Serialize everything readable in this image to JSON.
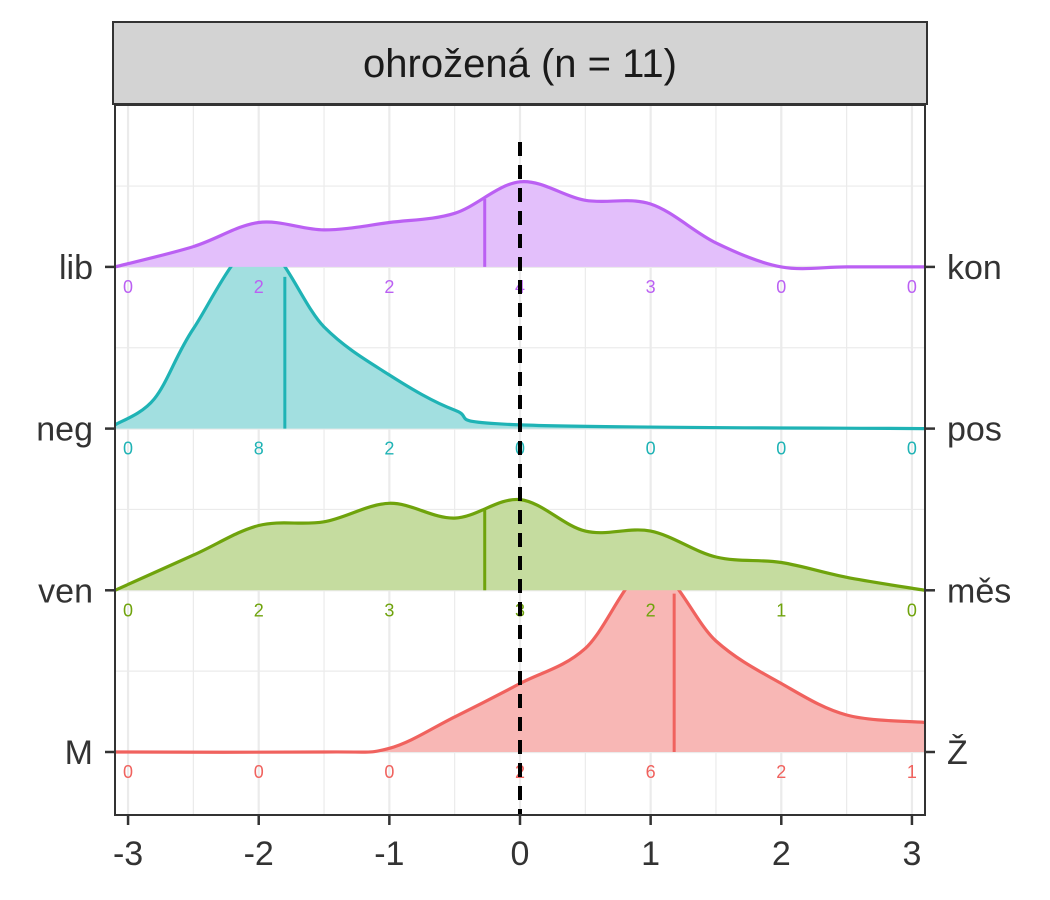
{
  "chart_data": {
    "type": "ridgeline",
    "panel_title": "ohrožená (n = 11)",
    "xlim": [
      -3.1,
      3.1
    ],
    "x_ticks": [
      "-3",
      "-2",
      "-1",
      "0",
      "1",
      "2",
      "3"
    ],
    "x_tick_values": [
      -3,
      -2,
      -1,
      0,
      1,
      2,
      3
    ],
    "reference_line_x": 0,
    "grid": true,
    "rows": [
      {
        "left_label": "M",
        "right_label": "Ž",
        "color": "#F0625E",
        "fill": "#F8B7B5",
        "mean": 1.18,
        "counts": [
          "0",
          "0",
          "0",
          "2",
          "6",
          "2",
          "1"
        ],
        "density_x": [
          -3.1,
          -1.5,
          -1.0,
          -0.5,
          0.0,
          0.5,
          1.0,
          1.5,
          2.0,
          2.5,
          3.1
        ],
        "density_y": [
          0.0,
          0.0,
          0.02,
          0.19,
          0.37,
          0.56,
          1.0,
          0.6,
          0.37,
          0.2,
          0.16
        ]
      },
      {
        "left_label": "ven",
        "right_label": "měs",
        "color": "#6FA30C",
        "fill": "#C5DC9F",
        "mean": -0.27,
        "counts": [
          "0",
          "2",
          "3",
          "3",
          "2",
          "1",
          "0"
        ],
        "density_x": [
          -3.1,
          -2.5,
          -2.0,
          -1.5,
          -1.0,
          -0.5,
          0.0,
          0.5,
          1.0,
          1.5,
          2.0,
          2.5,
          3.1
        ],
        "density_y": [
          0.0,
          0.19,
          0.35,
          0.37,
          0.47,
          0.39,
          0.49,
          0.32,
          0.32,
          0.18,
          0.15,
          0.07,
          0.0
        ]
      },
      {
        "left_label": "neg",
        "right_label": "pos",
        "color": "#1FB3B5",
        "fill": "#A2DFE0",
        "mean": -1.8,
        "counts": [
          "0",
          "8",
          "2",
          "0",
          "0",
          "0",
          "0"
        ],
        "density_x": [
          -3.1,
          -2.8,
          -2.5,
          -2.0,
          -1.5,
          -1.0,
          -0.5,
          0.0,
          3.1
        ],
        "density_y": [
          0.02,
          0.16,
          0.54,
          1.0,
          0.55,
          0.29,
          0.1,
          0.02,
          0.0
        ]
      },
      {
        "left_label": "lib",
        "right_label": "kon",
        "color": "#BB60F3",
        "fill": "#E3BFFB",
        "mean": -0.27,
        "counts": [
          "0",
          "2",
          "2",
          "4",
          "3",
          "0",
          "0"
        ],
        "density_x": [
          -3.1,
          -2.5,
          -2.0,
          -1.5,
          -1.0,
          -0.5,
          0.0,
          0.5,
          1.0,
          1.5,
          2.0,
          2.5,
          3.1
        ],
        "density_y": [
          0.0,
          0.11,
          0.24,
          0.2,
          0.24,
          0.29,
          0.46,
          0.36,
          0.34,
          0.13,
          0.0,
          0.0,
          0.0
        ]
      }
    ]
  }
}
